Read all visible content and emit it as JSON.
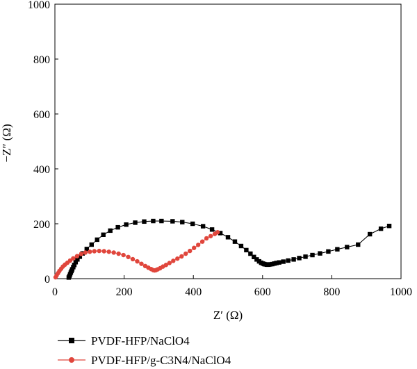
{
  "chart_data": {
    "type": "scatter",
    "title": "",
    "xlabel": "Z′ (Ω)",
    "ylabel": "−Z″ (Ω)",
    "xlim": [
      0,
      1000
    ],
    "ylim": [
      0,
      1000
    ],
    "xticks": [
      0,
      200,
      400,
      600,
      800,
      1000
    ],
    "yticks": [
      0,
      200,
      400,
      600,
      800,
      1000
    ],
    "grid": false,
    "legend_position": "bottom",
    "series": [
      {
        "name": "PVDF-HFP/NaClO4",
        "color": "#000000",
        "marker": "square",
        "x": [
          40,
          42,
          44,
          46,
          48,
          50,
          53,
          56,
          60,
          65,
          72,
          80,
          92,
          106,
          122,
          140,
          160,
          182,
          206,
          232,
          258,
          284,
          308,
          340,
          368,
          398,
          428,
          454,
          478,
          500,
          520,
          538,
          553,
          565,
          575,
          583,
          590,
          596,
          601,
          605,
          609,
          613,
          617,
          622,
          628,
          634,
          640,
          648,
          660,
          674,
          690,
          706,
          724,
          744,
          766,
          790,
          816,
          844,
          876,
          910,
          942,
          966
        ],
        "y": [
          4,
          10,
          16,
          22,
          28,
          34,
          42,
          50,
          60,
          70,
          80,
          92,
          108,
          124,
          142,
          160,
          175,
          187,
          197,
          204,
          208,
          210,
          210,
          209,
          206,
          200,
          191,
          179,
          166,
          151,
          135,
          119,
          104,
          91,
          79,
          70,
          63,
          58,
          55,
          53,
          52,
          51,
          51,
          52,
          53,
          55,
          57,
          59,
          62,
          66,
          70,
          75,
          80,
          86,
          92,
          99,
          107,
          115,
          124,
          162,
          182,
          192
        ]
      },
      {
        "name": "PVDF-HFP/g-C3N4/NaClO4",
        "color": "#e0463c",
        "marker": "circle",
        "x": [
          2,
          5,
          9,
          13,
          18,
          23,
          29,
          36,
          44,
          53,
          64,
          76,
          88,
          101,
          114,
          128,
          142,
          156,
          170,
          184,
          198,
          212,
          225,
          238,
          250,
          261,
          270,
          278,
          284,
          288,
          292,
          297,
          304,
          312,
          321,
          331,
          342,
          354,
          366,
          378,
          390,
          402,
          414,
          426,
          438,
          450,
          462,
          470
        ],
        "y": [
          5,
          12,
          20,
          28,
          36,
          44,
          51,
          58,
          66,
          74,
          82,
          90,
          95,
          98,
          100,
          101,
          100,
          98,
          95,
          91,
          86,
          79,
          71,
          63,
          54,
          46,
          40,
          35,
          31,
          30,
          31,
          34,
          38,
          44,
          50,
          57,
          65,
          73,
          81,
          91,
          101,
          112,
          123,
          135,
          147,
          155,
          163,
          169
        ]
      }
    ]
  }
}
